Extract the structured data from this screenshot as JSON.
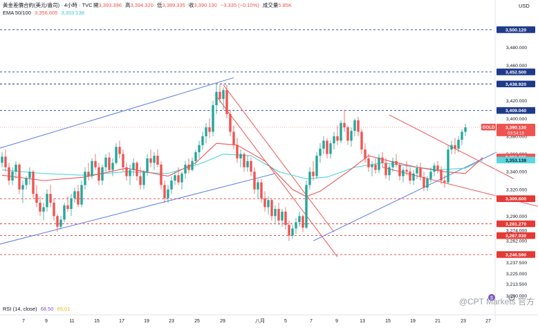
{
  "header": {
    "symbol": "黃金差價合約(美元/盎司) · 4小時 · TVC",
    "ohlc": [
      {
        "label": "開",
        "value": "3,393.396"
      },
      {
        "label": "高",
        "value": "3,394.320"
      },
      {
        "label": "低",
        "value": "3,389.335"
      },
      {
        "label": "收",
        "value": "3,390.130"
      }
    ],
    "change": "−3.335 (−0.10%)",
    "volume_label": "成交量",
    "volume_value": "5.85K",
    "ema_label": "EMA 50/100",
    "ema_values": [
      "3,356.605",
      "3,353.138"
    ]
  },
  "rsi": {
    "label": "RSI (14, close)",
    "values": [
      "68.50",
      "65.01"
    ]
  },
  "watermark": "@CPT Markets 官方",
  "colors": {
    "up": "#26a69a",
    "down": "#ef5350",
    "channel": "#5b7ee5",
    "ema50": "#ef5350",
    "ema100": "#5ad7e0",
    "level": "#1e3a8a",
    "support": "#e53935"
  },
  "chart_data": {
    "type": "candlestick",
    "currency": "USD",
    "ylim": [
      3206,
      3518
    ],
    "y_ticks": [
      "3,500.120",
      "3,480.000",
      "3,460.000",
      "3,452.500",
      "3,438.920",
      "3,420.000",
      "3,409.040",
      "3,400.000",
      "3,380.000",
      "3,360.000",
      "3,356.605",
      "3,353.138",
      "3,340.000",
      "3,320.000",
      "3,309.600",
      "3,290.000",
      "3,281.270",
      "3,274.000",
      "3,267.930",
      "3,262.000",
      "3,246.590",
      "3,237.500",
      "3,225.000",
      "3,213.500",
      "3,200.000"
    ],
    "x_ticks": [
      "7",
      "9",
      "11",
      "15",
      "17",
      "19",
      "23",
      "25",
      "29",
      "八月",
      "5",
      "7",
      "9",
      "13",
      "15",
      "19",
      "21",
      "23",
      "27"
    ],
    "price_labels": [
      {
        "value": 3500.12,
        "text": "3,500.120",
        "kind": "level"
      },
      {
        "value": 3452.5,
        "text": "3,452.500",
        "kind": "level"
      },
      {
        "value": 3438.92,
        "text": "3,438.920",
        "kind": "level"
      },
      {
        "value": 3409.04,
        "text": "3,409.040",
        "kind": "level"
      },
      {
        "value": 3309.6,
        "text": "3,309.600",
        "kind": "support"
      },
      {
        "value": 3281.27,
        "text": "3,281.270",
        "kind": "support"
      },
      {
        "value": 3267.93,
        "text": "3,267.930",
        "kind": "support"
      },
      {
        "value": 3246.59,
        "text": "3,246.590",
        "kind": "support"
      }
    ],
    "current": {
      "symbol": "GOLD",
      "price": "3,390.130",
      "countdown": "03:54:15",
      "value": 3390.13
    },
    "ema50_label": {
      "value": 3356.605,
      "text": "3,356.605"
    },
    "ema100_label": {
      "value": 3353.138,
      "text": "3,353.138"
    },
    "candles": [
      [
        3350,
        3362,
        3345,
        3357
      ],
      [
        3357,
        3365,
        3340,
        3345
      ],
      [
        3345,
        3350,
        3325,
        3330
      ],
      [
        3330,
        3345,
        3325,
        3340
      ],
      [
        3340,
        3352,
        3332,
        3348
      ],
      [
        3348,
        3350,
        3315,
        3320
      ],
      [
        3320,
        3330,
        3305,
        3325
      ],
      [
        3325,
        3335,
        3320,
        3333
      ],
      [
        3333,
        3345,
        3325,
        3340
      ],
      [
        3340,
        3342,
        3310,
        3315
      ],
      [
        3315,
        3325,
        3300,
        3305
      ],
      [
        3305,
        3312,
        3290,
        3295
      ],
      [
        3295,
        3305,
        3285,
        3300
      ],
      [
        3300,
        3320,
        3295,
        3315
      ],
      [
        3315,
        3325,
        3300,
        3305
      ],
      [
        3305,
        3310,
        3285,
        3290
      ],
      [
        3290,
        3292,
        3272,
        3278
      ],
      [
        3278,
        3290,
        3275,
        3286
      ],
      [
        3286,
        3305,
        3283,
        3302
      ],
      [
        3302,
        3312,
        3295,
        3298
      ],
      [
        3298,
        3315,
        3290,
        3310
      ],
      [
        3310,
        3322,
        3305,
        3318
      ],
      [
        3318,
        3325,
        3300,
        3303
      ],
      [
        3303,
        3330,
        3300,
        3325
      ],
      [
        3325,
        3345,
        3320,
        3340
      ],
      [
        3340,
        3350,
        3330,
        3335
      ],
      [
        3335,
        3355,
        3332,
        3352
      ],
      [
        3352,
        3360,
        3342,
        3345
      ],
      [
        3345,
        3350,
        3325,
        3330
      ],
      [
        3330,
        3348,
        3325,
        3345
      ],
      [
        3345,
        3360,
        3340,
        3356
      ],
      [
        3356,
        3362,
        3340,
        3342
      ],
      [
        3342,
        3355,
        3335,
        3350
      ],
      [
        3350,
        3372,
        3348,
        3368
      ],
      [
        3368,
        3375,
        3355,
        3360
      ],
      [
        3360,
        3365,
        3340,
        3345
      ],
      [
        3345,
        3350,
        3330,
        3335
      ],
      [
        3335,
        3348,
        3325,
        3342
      ],
      [
        3342,
        3355,
        3335,
        3350
      ],
      [
        3350,
        3352,
        3330,
        3335
      ],
      [
        3335,
        3345,
        3320,
        3325
      ],
      [
        3325,
        3342,
        3320,
        3340
      ],
      [
        3340,
        3360,
        3335,
        3355
      ],
      [
        3355,
        3365,
        3345,
        3350
      ],
      [
        3350,
        3362,
        3342,
        3358
      ],
      [
        3358,
        3365,
        3345,
        3348
      ],
      [
        3348,
        3352,
        3320,
        3325
      ],
      [
        3325,
        3330,
        3305,
        3310
      ],
      [
        3310,
        3325,
        3305,
        3320
      ],
      [
        3320,
        3335,
        3315,
        3330
      ],
      [
        3330,
        3340,
        3325,
        3336
      ],
      [
        3336,
        3345,
        3325,
        3328
      ],
      [
        3328,
        3340,
        3320,
        3338
      ],
      [
        3338,
        3352,
        3332,
        3348
      ],
      [
        3348,
        3355,
        3338,
        3342
      ],
      [
        3342,
        3356,
        3340,
        3352
      ],
      [
        3352,
        3365,
        3348,
        3362
      ],
      [
        3362,
        3375,
        3355,
        3370
      ],
      [
        3370,
        3385,
        3365,
        3380
      ],
      [
        3380,
        3395,
        3372,
        3390
      ],
      [
        3390,
        3400,
        3378,
        3385
      ],
      [
        3385,
        3420,
        3380,
        3415
      ],
      [
        3415,
        3438,
        3405,
        3430
      ],
      [
        3430,
        3438,
        3418,
        3422
      ],
      [
        3422,
        3435,
        3410,
        3432
      ],
      [
        3432,
        3438,
        3400,
        3405
      ],
      [
        3405,
        3410,
        3380,
        3385
      ],
      [
        3385,
        3392,
        3365,
        3370
      ],
      [
        3370,
        3378,
        3350,
        3355
      ],
      [
        3355,
        3365,
        3345,
        3360
      ],
      [
        3360,
        3362,
        3340,
        3345
      ],
      [
        3345,
        3358,
        3340,
        3352
      ],
      [
        3352,
        3356,
        3335,
        3340
      ],
      [
        3340,
        3345,
        3315,
        3320
      ],
      [
        3320,
        3332,
        3310,
        3328
      ],
      [
        3328,
        3332,
        3305,
        3310
      ],
      [
        3310,
        3318,
        3295,
        3300
      ],
      [
        3300,
        3312,
        3292,
        3308
      ],
      [
        3308,
        3310,
        3285,
        3290
      ],
      [
        3290,
        3302,
        3282,
        3298
      ],
      [
        3298,
        3305,
        3280,
        3285
      ],
      [
        3285,
        3298,
        3278,
        3295
      ],
      [
        3295,
        3300,
        3275,
        3280
      ],
      [
        3280,
        3285,
        3262,
        3268
      ],
      [
        3268,
        3280,
        3264,
        3276
      ],
      [
        3276,
        3288,
        3270,
        3283
      ],
      [
        3283,
        3295,
        3278,
        3290
      ],
      [
        3290,
        3292,
        3272,
        3277
      ],
      [
        3277,
        3330,
        3275,
        3325
      ],
      [
        3325,
        3345,
        3320,
        3340
      ],
      [
        3340,
        3352,
        3330,
        3335
      ],
      [
        3335,
        3362,
        3332,
        3358
      ],
      [
        3358,
        3372,
        3350,
        3366
      ],
      [
        3366,
        3380,
        3360,
        3375
      ],
      [
        3375,
        3378,
        3355,
        3360
      ],
      [
        3360,
        3375,
        3355,
        3372
      ],
      [
        3372,
        3385,
        3365,
        3380
      ],
      [
        3380,
        3392,
        3370,
        3375
      ],
      [
        3375,
        3398,
        3372,
        3395
      ],
      [
        3395,
        3410,
        3385,
        3390
      ],
      [
        3390,
        3392,
        3370,
        3375
      ],
      [
        3375,
        3390,
        3368,
        3386
      ],
      [
        3386,
        3400,
        3380,
        3398
      ],
      [
        3398,
        3402,
        3380,
        3385
      ],
      [
        3385,
        3388,
        3360,
        3365
      ],
      [
        3365,
        3372,
        3350,
        3355
      ],
      [
        3355,
        3360,
        3340,
        3345
      ],
      [
        3345,
        3352,
        3335,
        3348
      ],
      [
        3348,
        3355,
        3338,
        3342
      ],
      [
        3342,
        3360,
        3338,
        3356
      ],
      [
        3356,
        3362,
        3345,
        3350
      ],
      [
        3350,
        3355,
        3332,
        3336
      ],
      [
        3336,
        3348,
        3330,
        3345
      ],
      [
        3345,
        3356,
        3340,
        3352
      ],
      [
        3352,
        3360,
        3345,
        3348
      ],
      [
        3348,
        3350,
        3330,
        3335
      ],
      [
        3335,
        3345,
        3328,
        3342
      ],
      [
        3342,
        3352,
        3336,
        3340
      ],
      [
        3340,
        3345,
        3326,
        3330
      ],
      [
        3330,
        3342,
        3325,
        3338
      ],
      [
        3338,
        3348,
        3332,
        3344
      ],
      [
        3344,
        3350,
        3330,
        3334
      ],
      [
        3334,
        3340,
        3318,
        3322
      ],
      [
        3322,
        3335,
        3318,
        3332
      ],
      [
        3332,
        3345,
        3328,
        3340
      ],
      [
        3340,
        3350,
        3335,
        3347
      ],
      [
        3347,
        3352,
        3338,
        3342
      ],
      [
        3342,
        3346,
        3326,
        3330
      ],
      [
        3330,
        3336,
        3322,
        3328
      ],
      [
        3328,
        3370,
        3326,
        3365
      ],
      [
        3365,
        3375,
        3360,
        3370
      ],
      [
        3370,
        3378,
        3360,
        3366
      ],
      [
        3366,
        3380,
        3362,
        3376
      ],
      [
        3376,
        3388,
        3370,
        3385
      ],
      [
        3385,
        3394,
        3380,
        3390
      ]
    ],
    "ema50": [
      [
        0,
        3336
      ],
      [
        12,
        3330
      ],
      [
        24,
        3334
      ],
      [
        36,
        3344
      ],
      [
        48,
        3335
      ],
      [
        56,
        3350
      ],
      [
        62,
        3372
      ],
      [
        68,
        3370
      ],
      [
        76,
        3352
      ],
      [
        84,
        3320
      ],
      [
        88,
        3312
      ],
      [
        92,
        3318
      ],
      [
        100,
        3340
      ],
      [
        106,
        3358
      ],
      [
        112,
        3352
      ],
      [
        120,
        3345
      ],
      [
        128,
        3340
      ],
      [
        134,
        3338
      ],
      [
        139,
        3356
      ]
    ],
    "ema100": [
      [
        0,
        3342
      ],
      [
        12,
        3338
      ],
      [
        24,
        3336
      ],
      [
        36,
        3340
      ],
      [
        48,
        3338
      ],
      [
        58,
        3350
      ],
      [
        64,
        3360
      ],
      [
        72,
        3358
      ],
      [
        80,
        3340
      ],
      [
        88,
        3332
      ],
      [
        94,
        3334
      ],
      [
        102,
        3345
      ],
      [
        110,
        3350
      ],
      [
        118,
        3346
      ],
      [
        126,
        3342
      ],
      [
        134,
        3344
      ],
      [
        139,
        3353
      ]
    ],
    "trendlines": [
      {
        "color": "#5b7ee5",
        "points": [
          [
            -2,
            3365
          ],
          [
            67,
            3446
          ]
        ]
      },
      {
        "color": "#5b7ee5",
        "points": [
          [
            -2,
            3257
          ],
          [
            79,
            3338
          ]
        ]
      },
      {
        "color": "#5b7ee5",
        "points": [
          [
            90,
            3262
          ],
          [
            143,
            3362
          ]
        ]
      },
      {
        "color": "#ef5350",
        "points": [
          [
            64,
            3438
          ],
          [
            96,
            3272
          ]
        ]
      },
      {
        "color": "#ef5350",
        "points": [
          [
            62,
            3425
          ],
          [
            97,
            3244
          ]
        ]
      },
      {
        "color": "#ef5350",
        "points": [
          [
            112,
            3404
          ],
          [
            148,
            3332
          ]
        ]
      },
      {
        "color": "#ef5350",
        "points": [
          [
            110,
            3345
          ],
          [
            156,
            3300
          ]
        ]
      }
    ]
  }
}
